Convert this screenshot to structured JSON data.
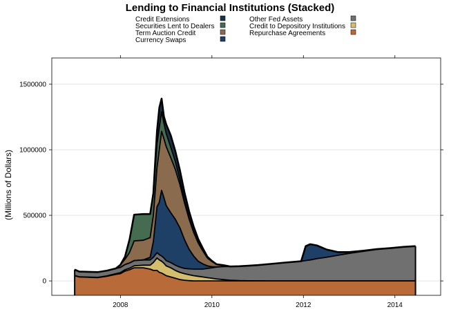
{
  "chart_data": {
    "type": "area",
    "stacked": true,
    "title": "Lending to Financial Institutions (Stacked)",
    "xlabel": "",
    "ylabel": "(Millions of Dollars)",
    "xlim": [
      2006.5,
      2015.0
    ],
    "ylim": [
      -110000,
      1700000
    ],
    "x_ticks": [
      2008,
      2010,
      2012,
      2014
    ],
    "y_ticks": [
      0,
      500000,
      1000000,
      1500000
    ],
    "grid": true,
    "legend_position": "top",
    "x": [
      2007.0,
      2007.1,
      2007.5,
      2007.7,
      2007.9,
      2008.0,
      2008.1,
      2008.2,
      2008.3,
      2008.5,
      2008.65,
      2008.72,
      2008.8,
      2008.85,
      2008.9,
      2008.95,
      2009.0,
      2009.1,
      2009.2,
      2009.3,
      2009.4,
      2009.5,
      2009.6,
      2009.7,
      2009.8,
      2009.9,
      2010.0,
      2010.1,
      2010.25,
      2010.4,
      2010.6,
      2010.8,
      2011.0,
      2011.3,
      2011.6,
      2011.95,
      2012.05,
      2012.15,
      2012.3,
      2012.5,
      2012.75,
      2013.0,
      2013.3,
      2013.6,
      2013.9,
      2014.2,
      2014.45
    ],
    "series": [
      {
        "name": "Repurchase Agreements",
        "color": "#B86B38",
        "values": [
          40000,
          30000,
          25000,
          35000,
          50000,
          55000,
          75000,
          85000,
          100000,
          100000,
          90000,
          80000,
          80000,
          65000,
          60000,
          50000,
          40000,
          30000,
          20000,
          10000,
          5000,
          2000,
          0,
          0,
          0,
          0,
          0,
          0,
          0,
          0,
          0,
          0,
          0,
          0,
          0,
          0,
          0,
          0,
          0,
          0,
          0,
          0,
          0,
          0,
          0,
          0,
          0
        ]
      },
      {
        "name": "Credit to Depository Institutions",
        "color": "#D2BE6E",
        "values": [
          1000,
          1000,
          2000,
          3000,
          5000,
          8000,
          10000,
          12000,
          15000,
          20000,
          30000,
          60000,
          95000,
          95000,
          90000,
          85000,
          75000,
          70000,
          60000,
          55000,
          50000,
          45000,
          40000,
          35000,
          30000,
          25000,
          20000,
          15000,
          10000,
          5000,
          2000,
          1000,
          500,
          0,
          0,
          0,
          0,
          0,
          0,
          0,
          0,
          0,
          0,
          0,
          0,
          0,
          0
        ]
      },
      {
        "name": "Other Fed Assets",
        "color": "#707070",
        "values": [
          45000,
          40000,
          40000,
          40000,
          40000,
          40000,
          40000,
          40000,
          40000,
          40000,
          40000,
          40000,
          40000,
          40000,
          40000,
          40000,
          40000,
          40000,
          40000,
          40000,
          40000,
          45000,
          50000,
          55000,
          60000,
          70000,
          80000,
          90000,
          100000,
          105000,
          110000,
          115000,
          120000,
          130000,
          140000,
          150000,
          155000,
          160000,
          170000,
          180000,
          195000,
          210000,
          225000,
          240000,
          250000,
          260000,
          265000
        ]
      },
      {
        "name": "Currency Swaps",
        "color": "#1E3F66",
        "values": [
          0,
          0,
          0,
          0,
          0,
          0,
          0,
          0,
          0,
          0,
          20000,
          120000,
          350000,
          400000,
          500000,
          460000,
          420000,
          380000,
          350000,
          300000,
          220000,
          150000,
          100000,
          60000,
          40000,
          20000,
          8000,
          2000,
          0,
          0,
          0,
          0,
          0,
          0,
          0,
          0,
          110000,
          120000,
          100000,
          60000,
          25000,
          10000,
          5000,
          2000,
          0,
          0,
          0
        ]
      },
      {
        "name": "Term Auction Credit",
        "color": "#8B6B4E",
        "values": [
          0,
          0,
          0,
          0,
          0,
          20000,
          40000,
          80000,
          150000,
          150000,
          150000,
          200000,
          300000,
          400000,
          450000,
          450000,
          450000,
          420000,
          380000,
          330000,
          280000,
          230000,
          180000,
          140000,
          100000,
          60000,
          40000,
          20000,
          10000,
          0,
          0,
          0,
          0,
          0,
          0,
          0,
          0,
          0,
          0,
          0,
          0,
          0,
          0,
          0,
          0,
          0,
          0
        ]
      },
      {
        "name": "Securities Lent to Dealers",
        "color": "#456B51",
        "values": [
          0,
          0,
          0,
          0,
          0,
          0,
          20000,
          100000,
          200000,
          200000,
          180000,
          170000,
          180000,
          170000,
          150000,
          120000,
          100000,
          80000,
          60000,
          40000,
          20000,
          10000,
          5000,
          0,
          0,
          0,
          0,
          0,
          0,
          0,
          0,
          0,
          0,
          0,
          0,
          0,
          0,
          0,
          0,
          0,
          0,
          0,
          0,
          0,
          0,
          0,
          0
        ]
      },
      {
        "name": "Credit Extensions",
        "color": "#16334A",
        "values": [
          0,
          0,
          0,
          0,
          0,
          0,
          0,
          0,
          0,
          0,
          0,
          0,
          100000,
          150000,
          100000,
          50000,
          70000,
          90000,
          80000,
          70000,
          60000,
          50000,
          40000,
          30000,
          20000,
          10000,
          5000,
          0,
          0,
          0,
          0,
          0,
          0,
          0,
          0,
          0,
          0,
          0,
          0,
          0,
          0,
          0,
          0,
          0,
          0,
          0,
          0
        ]
      }
    ]
  },
  "legend": {
    "left": [
      "Credit Extensions",
      "Securities Lent to Dealers",
      "Term Auction Credit",
      "Currency Swaps"
    ],
    "right": [
      "Other Fed Assets",
      "Credit to Depository Institutions",
      "Repurchase Agreements"
    ]
  },
  "colors": {
    "Credit Extensions": "#16334A",
    "Securities Lent to Dealers": "#456B51",
    "Term Auction Credit": "#8B6B4E",
    "Currency Swaps": "#1E3F66",
    "Other Fed Assets": "#707070",
    "Credit to Depository Institutions": "#D2BE6E",
    "Repurchase Agreements": "#B86B38"
  }
}
